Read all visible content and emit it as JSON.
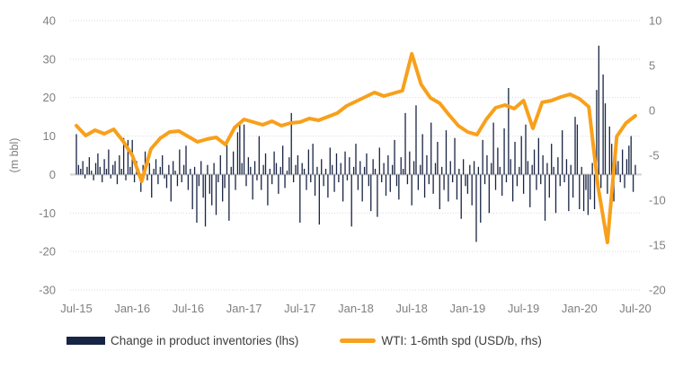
{
  "chart_data": {
    "type": "combo",
    "title": "",
    "y_left_axis": {
      "label": "(m bbl)",
      "min": -30,
      "max": 40,
      "tick_step": 10,
      "ticks": [
        40,
        30,
        20,
        10,
        0,
        -10,
        -20,
        -30
      ]
    },
    "y_right_axis": {
      "min": -20,
      "max": 10,
      "tick_step": 5,
      "ticks": [
        10,
        5,
        0,
        -5,
        -10,
        -15,
        -20
      ]
    },
    "x_axis": {
      "tick_labels": [
        "Jul-15",
        "Jan-16",
        "Jul-16",
        "Jan-17",
        "Jul-17",
        "Jan-18",
        "Jul-18",
        "Jan-19",
        "Jul-19",
        "Jan-20",
        "Jul-20"
      ],
      "tick_month_indices": [
        0,
        6,
        12,
        18,
        24,
        30,
        36,
        42,
        48,
        54,
        60
      ],
      "months_total": 60
    },
    "grid": {
      "show": true,
      "style": "dotted",
      "color": "#d9d9d9",
      "zero_axis_color": "#d9d9d9"
    },
    "text_color": "#7f7f7f",
    "series": [
      {
        "name": "Change in product inventories (lhs)",
        "type": "bar",
        "axis": "left",
        "color": "#182444",
        "frequency": "weekly",
        "values": [
          10.5,
          2.5,
          1.5,
          3.5,
          -1,
          2,
          4.5,
          1,
          -1.5,
          3,
          5.5,
          2,
          -2,
          4,
          1.5,
          6.5,
          -1,
          2.5,
          3.5,
          -2.5,
          5,
          1.5,
          9.5,
          -1.5,
          9,
          2,
          9,
          -2,
          3.5,
          1.5,
          -4.5,
          2.5,
          6,
          -1.5,
          3,
          -6,
          1.5,
          4,
          -2.5,
          2,
          5,
          -1,
          -3.5,
          2.5,
          -7,
          3.5,
          1,
          -3,
          6.5,
          -2,
          2.5,
          7.5,
          -4,
          1.5,
          -9,
          2,
          -12.5,
          -3,
          3.5,
          -6,
          -13.5,
          2.5,
          -5,
          -8,
          3,
          -10.5,
          -2,
          5,
          -7,
          -3.5,
          8.5,
          -12,
          2,
          6,
          -4,
          11,
          13.5,
          3,
          13,
          -3,
          4.5,
          2,
          -6.5,
          3.5,
          -1.5,
          10,
          -4,
          2.5,
          5.5,
          -8,
          1.5,
          -2.5,
          6,
          3,
          -5,
          2,
          7.5,
          -3.5,
          1,
          4.5,
          16,
          -2,
          2.5,
          5,
          -12.5,
          3,
          1.5,
          -4,
          6.5,
          -2,
          8,
          -5.5,
          2,
          -13,
          4,
          -3,
          1.5,
          -6,
          7,
          2.5,
          -4.5,
          5.5,
          -2,
          3,
          -7,
          6,
          -1.5,
          4.5,
          -13.5,
          2,
          8,
          -4,
          3.5,
          -7,
          2,
          5.5,
          -3,
          -9.5,
          4,
          1.5,
          -11,
          7,
          -2,
          3,
          -5.5,
          5,
          -4.5,
          2.5,
          9,
          -3,
          -6.5,
          4.5,
          1.5,
          16,
          -2.5,
          6,
          -8,
          3.5,
          18,
          -4,
          2.5,
          10.5,
          -6,
          5,
          -2.5,
          13.5,
          -5,
          3,
          8.5,
          -9,
          2,
          -4,
          11.5,
          -7,
          3.5,
          -2,
          9.5,
          -6.5,
          1.5,
          -11.5,
          4,
          -3,
          -5,
          2.5,
          -8,
          3.5,
          -17.5,
          2,
          -12.5,
          9,
          -2.5,
          5,
          -10,
          3,
          13.5,
          -4,
          7,
          2,
          -5.5,
          12,
          -2,
          22.5,
          4,
          -7,
          8.5,
          -3,
          2,
          10,
          -5,
          13,
          3.5,
          -8.5,
          2.5,
          6.5,
          -4,
          9.5,
          -2.5,
          5,
          -12,
          3,
          -6,
          8,
          2,
          -10,
          4.5,
          -3,
          11.5,
          -2,
          4,
          -9.5,
          2.5,
          -6,
          15,
          13,
          -9,
          2,
          -9.5,
          -4,
          -10.5,
          -6.5,
          3,
          -9,
          22,
          33.5,
          -3.5,
          26,
          18.5,
          -5,
          12.5,
          8,
          -7,
          5.5,
          3.5,
          -2,
          6.5,
          -3.5,
          4,
          7.5,
          10,
          -4.5,
          2.5
        ]
      },
      {
        "name": "WTI: 1-6mth spd (USD/b, rhs)",
        "type": "line",
        "axis": "right",
        "color": "#F8A01B",
        "frequency": "monthly",
        "values": [
          -1.7,
          -2.8,
          -2.2,
          -2.6,
          -2.1,
          -3.4,
          -5.0,
          -7.9,
          -4.3,
          -3.1,
          -2.4,
          -2.3,
          -2.9,
          -3.5,
          -3.2,
          -3.0,
          -3.8,
          -1.9,
          -1.0,
          -1.3,
          -1.6,
          -1.2,
          -1.7,
          -1.4,
          -1.3,
          -0.9,
          -1.1,
          -0.7,
          -0.3,
          0.5,
          1.0,
          1.5,
          2.0,
          1.6,
          1.9,
          2.2,
          6.3,
          2.9,
          1.4,
          0.8,
          -0.5,
          -1.7,
          -2.4,
          -2.7,
          -1.0,
          0.3,
          0.6,
          0.2,
          1.1,
          -2.0,
          0.9,
          1.1,
          1.5,
          1.8,
          1.3,
          0.4,
          -8.5,
          -14.7,
          -2.9,
          -1.4,
          -0.6
        ]
      }
    ],
    "legend": {
      "position": "bottom"
    }
  }
}
